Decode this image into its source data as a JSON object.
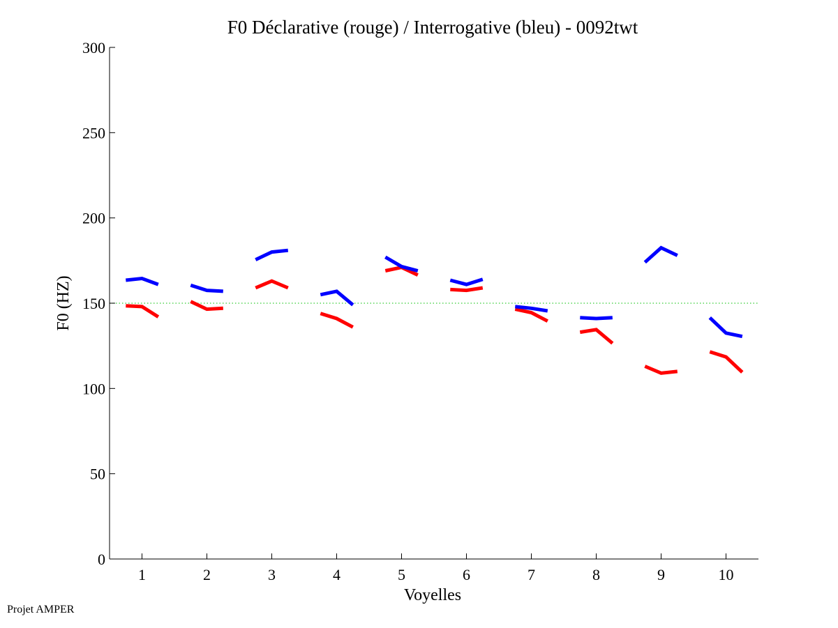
{
  "chart_data": {
    "type": "line",
    "title": "F0 Déclarative (rouge) / Interrogative (bleu) - 0092twt",
    "xlabel": "Voyelles",
    "ylabel": "F0 (HZ)",
    "xlim": [
      0.5,
      10.5
    ],
    "ylim": [
      0,
      300
    ],
    "xticks": [
      1,
      2,
      3,
      4,
      5,
      6,
      7,
      8,
      9,
      10
    ],
    "yticks": [
      0,
      50,
      100,
      150,
      200,
      250,
      300
    ],
    "reference_line": {
      "y": 150,
      "color": "#33cc33",
      "style": "dotted"
    },
    "grid": false,
    "series": [
      {
        "color": "#ff0000",
        "segments": [
          {
            "x": [
              0.75,
              1.0,
              1.25
            ],
            "y": [
              148.5,
              148.0,
              142.0
            ]
          },
          {
            "x": [
              1.75,
              2.0,
              2.25
            ],
            "y": [
              151.0,
              146.5,
              147.0
            ]
          },
          {
            "x": [
              2.75,
              3.0,
              3.25
            ],
            "y": [
              159.0,
              163.0,
              159.0
            ]
          },
          {
            "x": [
              3.75,
              4.0,
              4.25
            ],
            "y": [
              144.0,
              141.0,
              136.0
            ]
          },
          {
            "x": [
              4.75,
              5.0,
              5.25
            ],
            "y": [
              169.0,
              171.0,
              166.5
            ]
          },
          {
            "x": [
              5.75,
              6.0,
              6.25
            ],
            "y": [
              158.0,
              157.5,
              159.0
            ]
          },
          {
            "x": [
              6.75,
              7.0,
              7.25
            ],
            "y": [
              146.5,
              144.5,
              139.5
            ]
          },
          {
            "x": [
              7.75,
              8.0,
              8.25
            ],
            "y": [
              133.0,
              134.5,
              126.5
            ]
          },
          {
            "x": [
              8.75,
              9.0,
              9.25
            ],
            "y": [
              113.0,
              109.0,
              110.0
            ]
          },
          {
            "x": [
              9.75,
              10.0,
              10.25
            ],
            "y": [
              121.5,
              118.5,
              109.5
            ]
          }
        ]
      },
      {
        "color": "#0000ff",
        "segments": [
          {
            "x": [
              0.75,
              1.0,
              1.25
            ],
            "y": [
              163.5,
              164.5,
              161.0
            ]
          },
          {
            "x": [
              1.75,
              2.0,
              2.25
            ],
            "y": [
              160.5,
              157.5,
              157.0
            ]
          },
          {
            "x": [
              2.75,
              3.0,
              3.25
            ],
            "y": [
              175.5,
              180.0,
              181.0
            ]
          },
          {
            "x": [
              3.75,
              4.0,
              4.25
            ],
            "y": [
              155.0,
              157.0,
              149.0
            ]
          },
          {
            "x": [
              4.75,
              5.0,
              5.25
            ],
            "y": [
              177.0,
              171.5,
              169.0
            ]
          },
          {
            "x": [
              5.75,
              6.0,
              6.25
            ],
            "y": [
              163.5,
              161.0,
              164.0
            ]
          },
          {
            "x": [
              6.75,
              7.0,
              7.25
            ],
            "y": [
              148.0,
              147.0,
              145.5
            ]
          },
          {
            "x": [
              7.75,
              8.0,
              8.25
            ],
            "y": [
              141.5,
              141.0,
              141.5
            ]
          },
          {
            "x": [
              8.75,
              9.0,
              9.25
            ],
            "y": [
              174.0,
              182.5,
              178.0
            ]
          },
          {
            "x": [
              9.75,
              10.0,
              10.25
            ],
            "y": [
              141.5,
              132.5,
              130.5
            ]
          }
        ]
      }
    ]
  },
  "footer": {
    "text": "Projet AMPER"
  }
}
